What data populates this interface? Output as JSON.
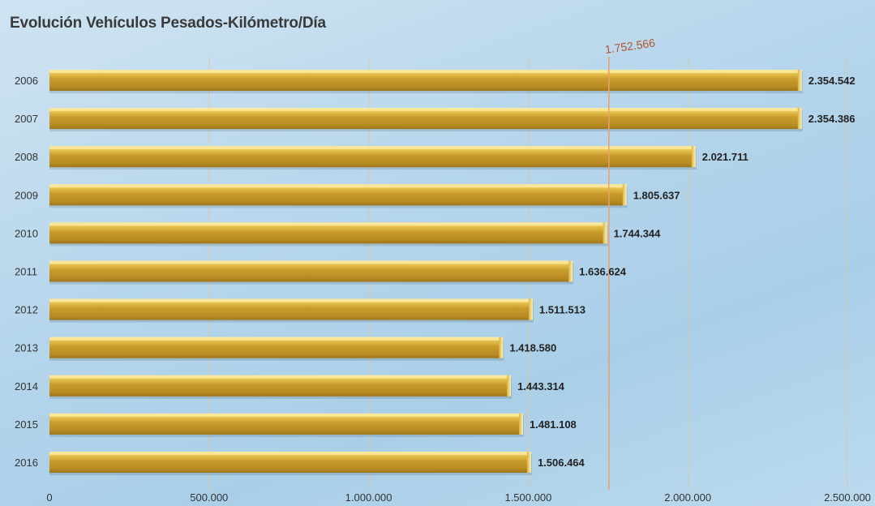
{
  "chart_data": {
    "type": "bar",
    "orientation": "horizontal",
    "title": "Evolución Vehículos Pesados-Kilómetro/Día",
    "categories": [
      "2006",
      "2007",
      "2008",
      "2009",
      "2010",
      "2011",
      "2012",
      "2013",
      "2014",
      "2015",
      "2016"
    ],
    "values": [
      2354542,
      2354386,
      2021711,
      1805637,
      1744344,
      1636624,
      1511513,
      1418580,
      1443314,
      1481108,
      1506464
    ],
    "value_labels": [
      "2.354.542",
      "2.354.386",
      "2.021.711",
      "1.805.637",
      "1.744.344",
      "1.636.624",
      "1.511.513",
      "1.418.580",
      "1.443.314",
      "1.481.108",
      "1.506.464"
    ],
    "xlim": [
      0,
      2500000
    ],
    "x_ticks": [
      0,
      500000,
      1000000,
      1500000,
      2000000,
      2500000
    ],
    "x_tick_labels": [
      "0",
      "500.000",
      "1.000.000",
      "1.500.000",
      "2.000.000",
      "2.500.000"
    ],
    "reference_line": {
      "value": 1752566,
      "label": "1.752.566"
    },
    "grid": true,
    "legend": "none",
    "colors": {
      "bar": "#c9a030",
      "bar_top": "#f3d66a",
      "bar_dark": "#9d7a1c",
      "reference": "#e8a070",
      "grid": "#d8c8a8"
    }
  }
}
